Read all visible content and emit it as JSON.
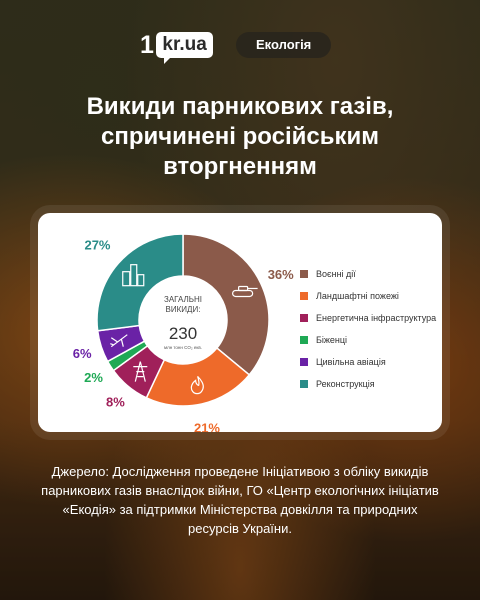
{
  "header": {
    "logo_mark": "1",
    "logo_text": "kr.ua",
    "category": "Екологія"
  },
  "title": "Викиди парникових газів, спричинені російським вторгненням",
  "chart_data": {
    "type": "pie",
    "donut": true,
    "center_label": "ЗАГАЛЬНІ ВИКИДИ:",
    "center_value": "230",
    "center_unit": "млн тонн CO₂ екв.",
    "categories": [
      "Воєнні дії",
      "Ландшафтні пожежі",
      "Енергетична інфраструктура",
      "Біженці",
      "Цивільна авіація",
      "Реконструкція"
    ],
    "values": [
      36,
      21,
      8,
      2,
      6,
      27
    ],
    "value_labels": [
      "36%",
      "21%",
      "8%",
      "2%",
      "6%",
      "27%"
    ],
    "colors": [
      "#8b5a4a",
      "#ee6a2a",
      "#a0205a",
      "#1fa955",
      "#6a22a6",
      "#2a8c88"
    ],
    "icons": [
      "tank-icon",
      "fire-icon",
      "power-tower-icon",
      "",
      "plane-icon",
      "buildings-icon"
    ],
    "legend_position": "right"
  },
  "source": "Джерело: Дослідження проведене Ініціативою з обліку викидів парникових газів внаслідок війни, ГО «Центр екологічних ініціатив «Екодія»  за підтримки Міністерства довкілля та природних ресурсів України."
}
